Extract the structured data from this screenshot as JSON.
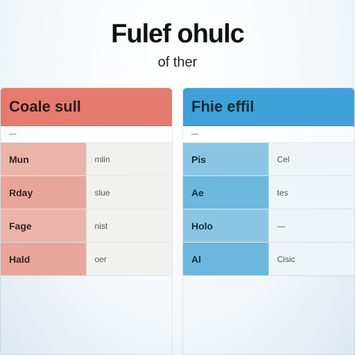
{
  "header": {
    "title": "Fulef ohulc",
    "subtitle": "of ther"
  },
  "comparison": {
    "type": "table",
    "background_color": "#f4f8fb",
    "left": {
      "header": "Coale sull",
      "header_bg": "#e57a6e",
      "row_bg_primary": "#e8a59b",
      "row_bg_primary_alt": "#eab4ab",
      "secondary_bg": "#f1f1ef",
      "subhead": "—",
      "rows": [
        {
          "primary": "Mun",
          "secondary": "mlin"
        },
        {
          "primary": "Rday",
          "secondary": "slue"
        },
        {
          "primary": "Fage",
          "secondary": "nist"
        },
        {
          "primary": "Hald",
          "secondary": "oer"
        }
      ]
    },
    "right": {
      "header": "Fhie effil",
      "header_bg": "#3fa1d8",
      "row_bg_primary": "#6bb7de",
      "row_bg_primary_alt": "#8ac6e4",
      "secondary_bg": "#eef4f7",
      "subhead": "—",
      "rows": [
        {
          "primary": "Pis",
          "secondary": "Cel"
        },
        {
          "primary": "Ae",
          "secondary": "tes"
        },
        {
          "primary": "Holo",
          "secondary": "—"
        },
        {
          "primary": "Al",
          "secondary": "Cisic"
        }
      ]
    }
  }
}
